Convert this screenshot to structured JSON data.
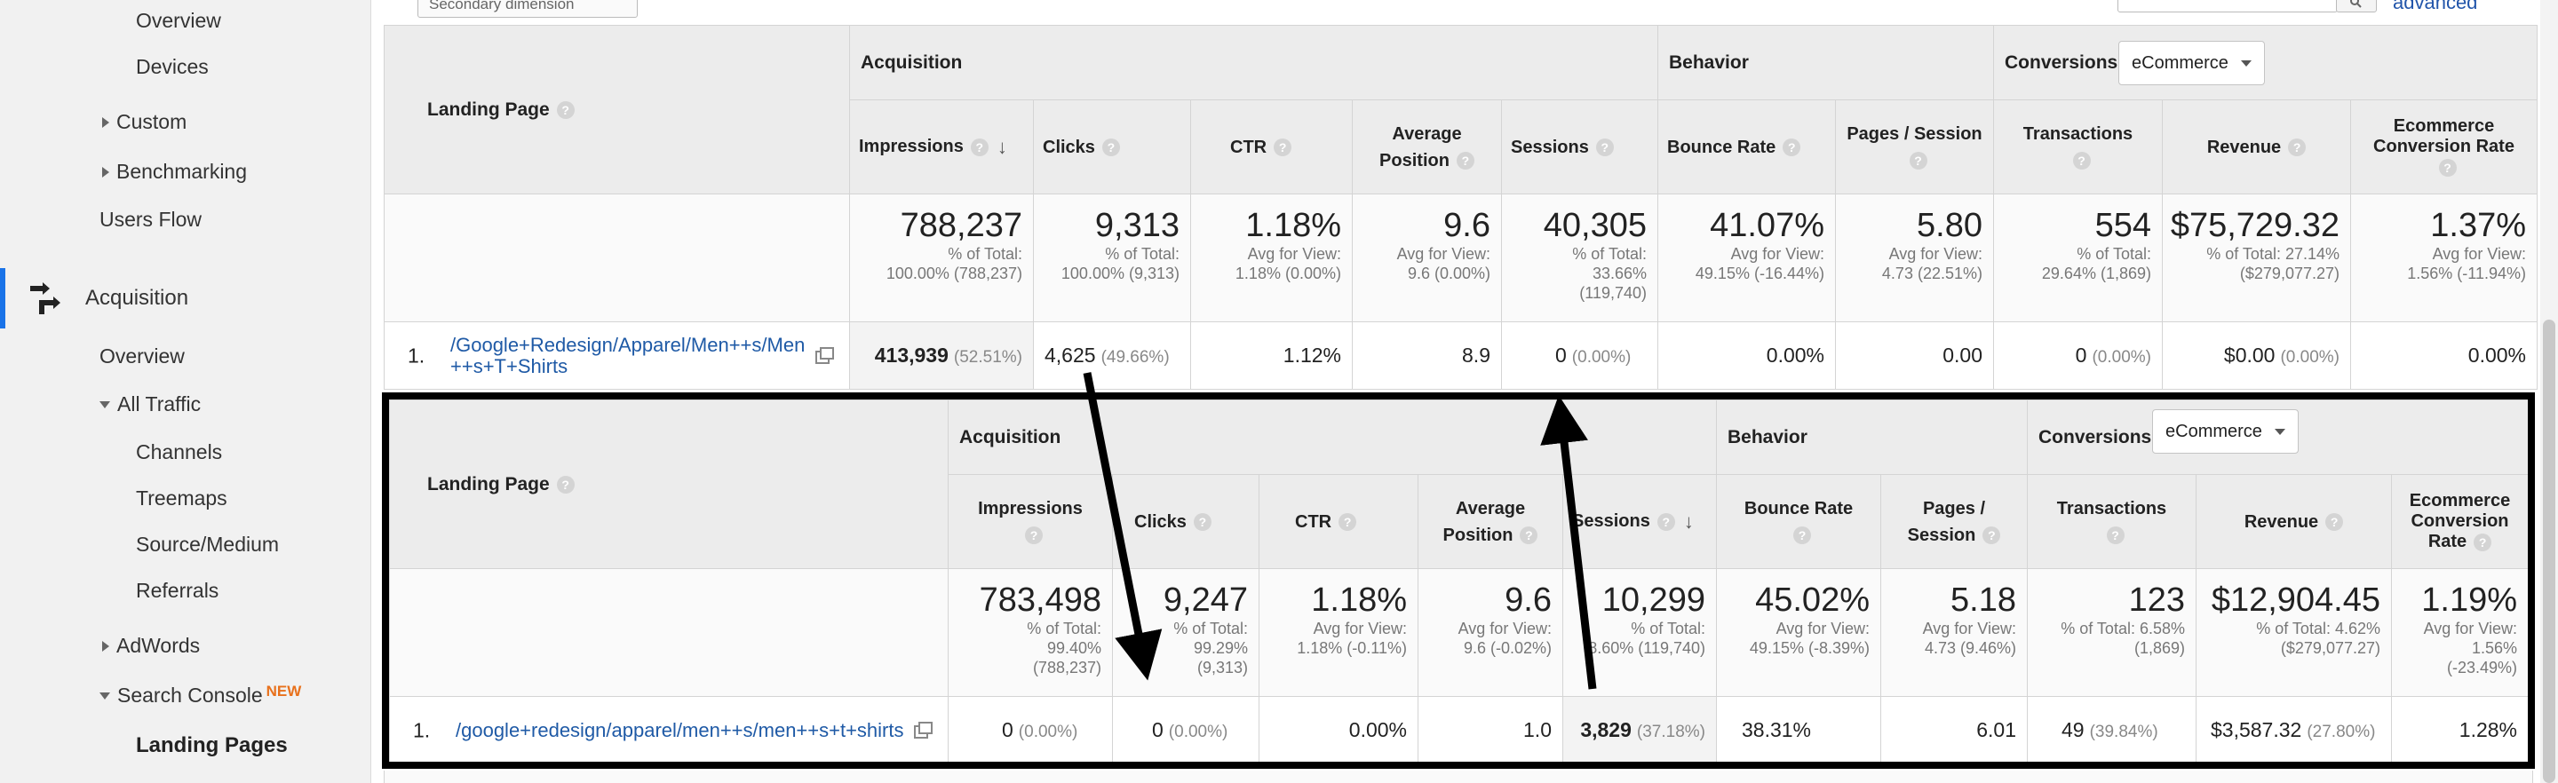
{
  "sidebar": {
    "overview_top": "Overview",
    "devices": "Devices",
    "custom": "Custom",
    "benchmarking": "Benchmarking",
    "users_flow": "Users Flow",
    "acquisition": "Acquisition",
    "acq_overview": "Overview",
    "all_traffic": "All Traffic",
    "channels": "Channels",
    "treemaps": "Treemaps",
    "source_medium": "Source/Medium",
    "referrals": "Referrals",
    "adwords": "AdWords",
    "search_console": "Search Console",
    "new_badge": "NEW",
    "landing_pages": "Landing Pages"
  },
  "toolbar": {
    "secondary_dimension": "Secondary dimension",
    "advanced": "advanced"
  },
  "colors": {
    "link": "#1f5aa6",
    "accent": "#1a73e8",
    "new_badge": "#e8711c"
  },
  "tables": [
    {
      "landing_page_header": "Landing Page",
      "groups": {
        "acquisition": "Acquisition",
        "behavior": "Behavior",
        "conversions": "Conversions"
      },
      "conversions_select": "eCommerce",
      "columns": {
        "impressions": "Impressions",
        "clicks": "Clicks",
        "ctr": "CTR",
        "avg_position": "Average Position",
        "sessions": "Sessions",
        "bounce_rate": "Bounce Rate",
        "pages_session": "Pages / Session",
        "transactions": "Transactions",
        "revenue": "Revenue",
        "ecom_rate": "Ecommerce Conversion Rate"
      },
      "totals": {
        "impressions": {
          "value": "788,237",
          "sub1": "% of Total:",
          "sub2": "100.00% (788,237)"
        },
        "clicks": {
          "value": "9,313",
          "sub1": "% of Total:",
          "sub2": "100.00% (9,313)"
        },
        "ctr": {
          "value": "1.18%",
          "sub1": "Avg for View:",
          "sub2": "1.18% (0.00%)"
        },
        "avg_position": {
          "value": "9.6",
          "sub1": "Avg for View:",
          "sub2": "9.6 (0.00%)"
        },
        "sessions": {
          "value": "40,305",
          "sub1": "% of Total:",
          "sub2": "33.66%",
          "sub3": "(119,740)"
        },
        "bounce_rate": {
          "value": "41.07%",
          "sub1": "Avg for View:",
          "sub2": "49.15% (-16.44%)"
        },
        "pages_session": {
          "value": "5.80",
          "sub1": "Avg for View:",
          "sub2": "4.73 (22.51%)"
        },
        "transactions": {
          "value": "554",
          "sub1": "% of Total:",
          "sub2": "29.64% (1,869)"
        },
        "revenue": {
          "value": "$75,729.32",
          "sub1": "% of Total: 27.14%",
          "sub2": "($279,077.27)"
        },
        "ecom_rate": {
          "value": "1.37%",
          "sub1": "Avg for View:",
          "sub2": "1.56% (-11.94%)"
        }
      },
      "row": {
        "num": "1.",
        "page": "/Google+Redesign/Apparel/Men++s/Men++s+T+Shirts",
        "impressions": "413,939",
        "impressions_pct": "(52.51%)",
        "clicks": "4,625",
        "clicks_pct": "(49.66%)",
        "ctr": "1.12%",
        "avg_position": "8.9",
        "sessions": "0",
        "sessions_pct": "(0.00%)",
        "bounce_rate": "0.00%",
        "pages_session": "0.00",
        "transactions": "0",
        "transactions_pct": "(0.00%)",
        "revenue": "$0.00",
        "revenue_pct": "(0.00%)",
        "ecom_rate": "0.00%"
      }
    },
    {
      "landing_page_header": "Landing Page",
      "groups": {
        "acquisition": "Acquisition",
        "behavior": "Behavior",
        "conversions": "Conversions"
      },
      "conversions_select": "eCommerce",
      "columns": {
        "impressions": "Impressions",
        "clicks": "Clicks",
        "ctr": "CTR",
        "avg_position": "Average Position",
        "sessions": "Sessions",
        "bounce_rate": "Bounce Rate",
        "pages_session": "Pages / Session",
        "transactions": "Transactions",
        "revenue": "Revenue",
        "ecom_rate": "Ecommerce Conversion Rate"
      },
      "totals": {
        "impressions": {
          "value": "783,498",
          "sub1": "% of Total:",
          "sub2": "99.40%",
          "sub3": "(788,237)"
        },
        "clicks": {
          "value": "9,247",
          "sub1": "% of Total:",
          "sub2": "99.29%",
          "sub3": "(9,313)"
        },
        "ctr": {
          "value": "1.18%",
          "sub1": "Avg for View:",
          "sub2": "1.18% (-0.11%)"
        },
        "avg_position": {
          "value": "9.6",
          "sub1": "Avg for View:",
          "sub2": "9.6 (-0.02%)"
        },
        "sessions": {
          "value": "10,299",
          "sub1": "% of Total:",
          "sub2": "8.60% (119,740)"
        },
        "bounce_rate": {
          "value": "45.02%",
          "sub1": "Avg for View:",
          "sub2": "49.15% (-8.39%)"
        },
        "pages_session": {
          "value": "5.18",
          "sub1": "Avg for View:",
          "sub2": "4.73 (9.46%)"
        },
        "transactions": {
          "value": "123",
          "sub1": "% of Total: 6.58%",
          "sub2": "(1,869)"
        },
        "revenue": {
          "value": "$12,904.45",
          "sub1": "% of Total: 4.62%",
          "sub2": "($279,077.27)"
        },
        "ecom_rate": {
          "value": "1.19%",
          "sub1": "Avg for View:",
          "sub2": "1.56%",
          "sub3": "(-23.49%)"
        }
      },
      "row": {
        "num": "1.",
        "page": "/google+redesign/apparel/men++s/men++s+t+shirts",
        "impressions": "0",
        "impressions_pct": "(0.00%)",
        "clicks": "0",
        "clicks_pct": "(0.00%)",
        "ctr": "0.00%",
        "avg_position": "1.0",
        "sessions": "3,829",
        "sessions_pct": "(37.18%)",
        "bounce_rate": "38.31%",
        "pages_session": "6.01",
        "transactions": "49",
        "transactions_pct": "(39.84%)",
        "revenue": "$3,587.32",
        "revenue_pct": "(27.80%)",
        "ecom_rate": "1.28%"
      }
    }
  ]
}
